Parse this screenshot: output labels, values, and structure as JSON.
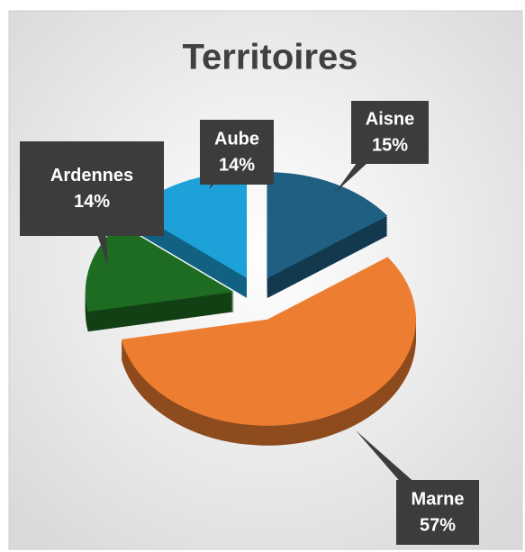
{
  "chart_data": {
    "type": "pie",
    "title": "Territoires",
    "categories": [
      "Aisne",
      "Marne",
      "Ardennes",
      "Aube"
    ],
    "values": [
      15,
      57,
      14,
      14
    ],
    "value_labels": [
      "15%",
      "57%",
      "14%",
      "14%"
    ],
    "colors": [
      "#1f5f82",
      "#ed7d31",
      "#1e6b22",
      "#1ca2d8"
    ]
  }
}
